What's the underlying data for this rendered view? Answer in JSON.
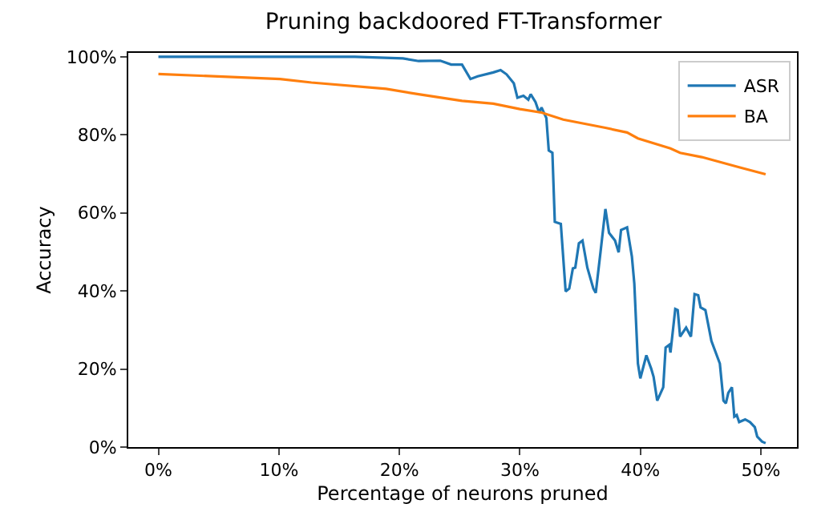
{
  "chart_data": {
    "type": "line",
    "title": "Pruning backdoored FT-Transformer",
    "xlabel": "Percentage of neurons pruned",
    "ylabel": "Accuracy",
    "xlim": [
      -2.5,
      53
    ],
    "xticks": [
      {
        "value": 0,
        "label": "0%"
      },
      {
        "value": 10,
        "label": "10%"
      },
      {
        "value": 20,
        "label": "20%"
      },
      {
        "value": 30,
        "label": "30%"
      },
      {
        "value": 40,
        "label": "40%"
      },
      {
        "value": 50,
        "label": "50%"
      }
    ],
    "ylim": [
      0,
      101
    ],
    "yticks": [
      {
        "value": 0,
        "label": "0%"
      },
      {
        "value": 20,
        "label": "20%"
      },
      {
        "value": 40,
        "label": "40%"
      },
      {
        "value": 60,
        "label": "60%"
      },
      {
        "value": 80,
        "label": "80%"
      },
      {
        "value": 100,
        "label": "100%"
      }
    ],
    "legend": "top right",
    "series": [
      {
        "name": "ASR",
        "color": "#1f77b4",
        "x": [
          0,
          16.3,
          20.3,
          21.6,
          23.4,
          24.3,
          25.2,
          25.9,
          26.5,
          27.8,
          28.4,
          28.9,
          29.5,
          29.8,
          30.3,
          30.7,
          30.9,
          31.3,
          31.6,
          31.8,
          32.2,
          32.4,
          32.7,
          32.9,
          33.4,
          33.8,
          34.1,
          34.4,
          34.6,
          34.9,
          35.2,
          35.6,
          36.1,
          36.3,
          36.7,
          37.1,
          37.4,
          37.9,
          38.2,
          38.4,
          38.9,
          39.3,
          39.5,
          39.8,
          40.0,
          40.5,
          40.9,
          41.1,
          41.4,
          41.9,
          42.1,
          42.4,
          42.5,
          42.9,
          43.1,
          43.3,
          43.8,
          44.2,
          44.5,
          44.8,
          45.0,
          45.4,
          45.9,
          46.6,
          46.9,
          47.1,
          47.3,
          47.6,
          47.8,
          48.0,
          48.2,
          48.7,
          49.1,
          49.5,
          49.7,
          50.1,
          50.4
        ],
        "values": [
          100,
          100,
          99.6,
          98.9,
          99,
          98,
          98,
          94.3,
          95,
          96,
          96.6,
          95.5,
          93.2,
          89.5,
          90,
          89,
          90.4,
          88.4,
          85.7,
          87,
          84.3,
          76,
          75.4,
          57.7,
          57.2,
          39.9,
          40.6,
          45.8,
          46,
          52.2,
          52.9,
          46,
          40.6,
          39.5,
          50.1,
          61,
          54.9,
          52.9,
          49.9,
          55.6,
          56.3,
          48.8,
          41.9,
          21.4,
          17.6,
          23.5,
          20.1,
          18,
          11.9,
          15.3,
          25.5,
          26.2,
          24.2,
          35.4,
          35.1,
          28.3,
          30.6,
          28.3,
          39.2,
          38.9,
          35.8,
          35.1,
          27.2,
          21.4,
          11.9,
          11.2,
          13.9,
          15.3,
          7.8,
          8.2,
          6.4,
          7.1,
          6.4,
          5.1,
          2.7,
          1.4,
          1
        ]
      },
      {
        "name": "BA",
        "color": "#ff7f0e",
        "x": [
          0,
          10.1,
          12.7,
          18.9,
          21.6,
          25.2,
          27.8,
          30,
          31.8,
          33.6,
          37.1,
          38.9,
          39.8,
          42.5,
          43.3,
          45.1,
          48.2,
          50.4
        ],
        "values": [
          95.6,
          94.3,
          93.4,
          91.8,
          90.4,
          88.7,
          88,
          86.6,
          85.7,
          83.9,
          81.8,
          80.6,
          79.1,
          76.5,
          75.4,
          74.3,
          71.7,
          69.9
        ]
      }
    ]
  }
}
